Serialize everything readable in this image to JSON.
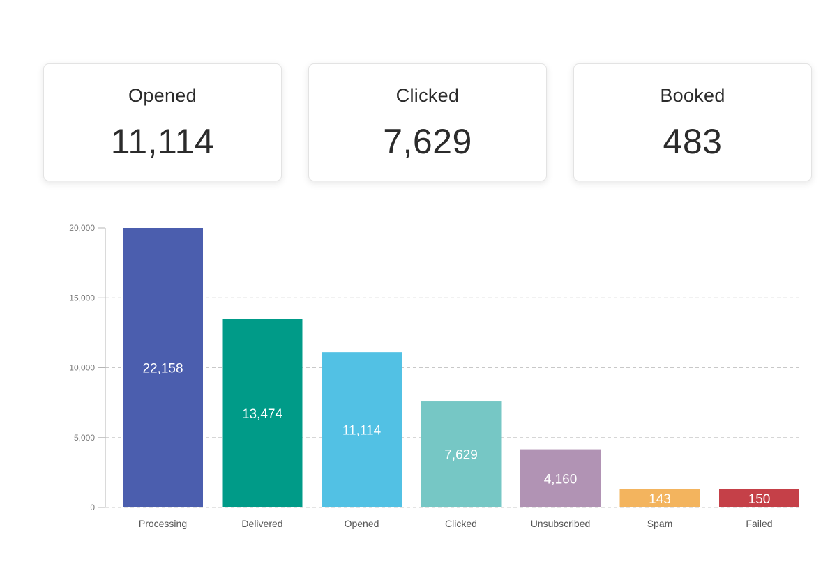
{
  "stats": [
    {
      "label": "Opened",
      "value": "11,114"
    },
    {
      "label": "Clicked",
      "value": "7,629"
    },
    {
      "label": "Booked",
      "value": "483"
    }
  ],
  "chart_data": {
    "type": "bar",
    "title": "",
    "xlabel": "",
    "ylabel": "",
    "ylim": [
      0,
      20000
    ],
    "yticks": [
      0,
      5000,
      10000,
      15000,
      20000
    ],
    "ytick_labels": [
      "0",
      "5,000",
      "10,000",
      "15,000",
      "20,000"
    ],
    "grid": true,
    "categories": [
      "Processing",
      "Delivered",
      "Opened",
      "Clicked",
      "Unsubscribed",
      "Spam",
      "Failed"
    ],
    "values": [
      22158,
      13474,
      11114,
      7629,
      4160,
      143,
      150
    ],
    "value_labels": [
      "22,158",
      "13,474",
      "11,114",
      "7,629",
      "4,160",
      "143",
      "150"
    ],
    "colors": [
      "#4b5eae",
      "#009b88",
      "#52c1e4",
      "#76c7c5",
      "#b193b4",
      "#f3b45e",
      "#c54048"
    ]
  }
}
